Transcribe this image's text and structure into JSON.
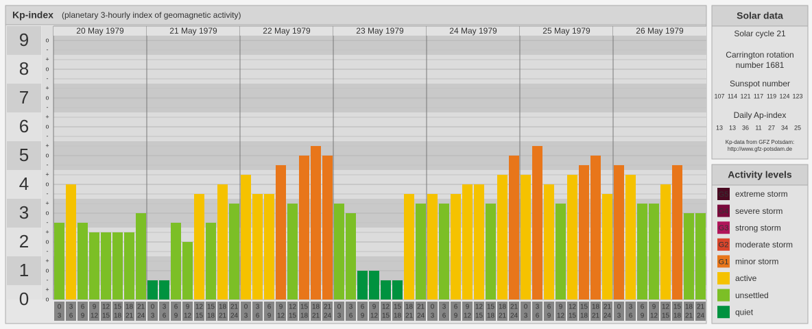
{
  "header": {
    "title": "Kp-index",
    "subtitle": "(planetary 3-hourly index of geomagnetic activity)"
  },
  "chart_data": {
    "type": "bar",
    "ylim": [
      0,
      9.5
    ],
    "yticks": [
      0,
      1,
      2,
      3,
      4,
      5,
      6,
      7,
      8,
      9
    ],
    "third_marks": [
      "o",
      "+",
      "-"
    ],
    "hour_starts": [
      0,
      3,
      6,
      9,
      12,
      15,
      18,
      21
    ],
    "hour_ends": [
      3,
      6,
      9,
      12,
      15,
      18,
      21,
      24
    ],
    "days": [
      {
        "date": "20 May 1979",
        "values": [
          2.667,
          4.0,
          2.667,
          2.333,
          2.333,
          2.333,
          2.333,
          3.0
        ],
        "colors": [
          "#7cbf26",
          "#f5c200",
          "#7cbf26",
          "#7cbf26",
          "#7cbf26",
          "#7cbf26",
          "#7cbf26",
          "#7cbf26"
        ]
      },
      {
        "date": "21 May 1979",
        "values": [
          0.667,
          0.667,
          2.667,
          2.0,
          3.667,
          2.667,
          4.0,
          3.333
        ],
        "colors": [
          "#00923f",
          "#00923f",
          "#7cbf26",
          "#7cbf26",
          "#f5c200",
          "#7cbf26",
          "#f5c200",
          "#7cbf26"
        ]
      },
      {
        "date": "22 May 1979",
        "values": [
          4.333,
          3.667,
          3.667,
          4.667,
          3.333,
          5.0,
          5.333,
          5.0
        ],
        "colors": [
          "#f5c200",
          "#f5c200",
          "#f5c200",
          "#e8761a",
          "#7cbf26",
          "#e8761a",
          "#e8761a",
          "#e8761a"
        ]
      },
      {
        "date": "23 May 1979",
        "values": [
          3.333,
          3.0,
          1.0,
          1.0,
          0.667,
          0.667,
          3.667,
          3.333
        ],
        "colors": [
          "#7cbf26",
          "#7cbf26",
          "#00923f",
          "#00923f",
          "#00923f",
          "#00923f",
          "#f5c200",
          "#7cbf26"
        ]
      },
      {
        "date": "24 May 1979",
        "values": [
          3.667,
          3.333,
          3.667,
          4.0,
          4.0,
          3.333,
          4.333,
          5.0
        ],
        "colors": [
          "#f5c200",
          "#7cbf26",
          "#f5c200",
          "#f5c200",
          "#f5c200",
          "#7cbf26",
          "#f5c200",
          "#e8761a"
        ]
      },
      {
        "date": "25 May 1979",
        "values": [
          4.333,
          5.333,
          4.0,
          3.333,
          4.333,
          4.667,
          5.0,
          3.667
        ],
        "colors": [
          "#f5c200",
          "#e8761a",
          "#f5c200",
          "#7cbf26",
          "#f5c200",
          "#e8761a",
          "#e8761a",
          "#f5c200"
        ]
      },
      {
        "date": "26 May 1979",
        "values": [
          4.667,
          4.333,
          3.333,
          3.333,
          4.0,
          4.667,
          3.0,
          3.0
        ],
        "colors": [
          "#e8761a",
          "#f5c200",
          "#7cbf26",
          "#7cbf26",
          "#f5c200",
          "#e8761a",
          "#7cbf26",
          "#7cbf26"
        ]
      }
    ]
  },
  "solar_data": {
    "title": "Solar data",
    "solar_cycle": "Solar cycle 21",
    "carrington": [
      "Carrington rotation",
      "number 1681"
    ],
    "sunspot_title": "Sunspot number",
    "sunspot_numbers": [
      107,
      114,
      121,
      117,
      119,
      124,
      123
    ],
    "ap_title": "Daily Ap-index",
    "ap_values": [
      13,
      13,
      36,
      11,
      27,
      34,
      25
    ],
    "source": [
      "Kp-data from GFZ Potsdam:",
      "http://www.gfz-potsdam.de"
    ]
  },
  "activity_levels": {
    "title": "Activity levels",
    "items": [
      {
        "code": "G5",
        "label": "extreme storm",
        "color": "#4a0a22"
      },
      {
        "code": "G4",
        "label": "severe storm",
        "color": "#7a0a3c"
      },
      {
        "code": "G3",
        "label": "strong storm",
        "color": "#b0155a"
      },
      {
        "code": "G2",
        "label": "moderate storm",
        "color": "#d9452b"
      },
      {
        "code": "G1",
        "label": "minor storm",
        "color": "#e8761a"
      },
      {
        "label": "active",
        "color": "#f5c200"
      },
      {
        "label": "unsettled",
        "color": "#7cbf26"
      },
      {
        "label": "quiet",
        "color": "#00923f"
      }
    ]
  }
}
